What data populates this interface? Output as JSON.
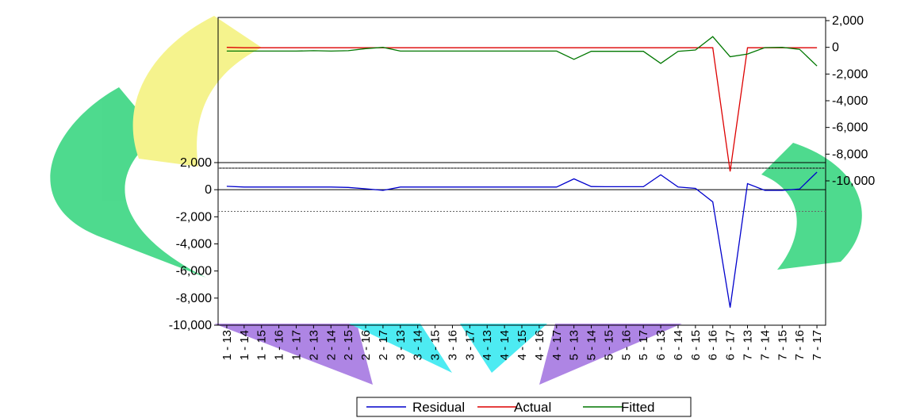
{
  "chart_data": {
    "type": "line",
    "title": "",
    "xlabel": "",
    "categories": [
      "1 - 13",
      "1 - 14",
      "1 - 15",
      "1 - 16",
      "1 - 17",
      "2 - 13",
      "2 - 14",
      "2 - 15",
      "2 - 16",
      "2 - 17",
      "3 - 13",
      "3 - 14",
      "3 - 15",
      "3 - 16",
      "3 - 17",
      "4 - 13",
      "4 - 14",
      "4 - 15",
      "4 - 16",
      "4 - 17",
      "5 - 13",
      "5 - 14",
      "5 - 15",
      "5 - 16",
      "5 - 17",
      "6 - 13",
      "6 - 14",
      "6 - 15",
      "6 - 16",
      "6 - 17",
      "7 - 13",
      "7 - 14",
      "7 - 15",
      "7 - 16",
      "7 - 17"
    ],
    "right_axis": {
      "ylim": [
        -10000,
        2000
      ],
      "ticks": [
        "2,000",
        "0",
        "-2,000",
        "-4,000",
        "-6,000",
        "-8,000",
        "-10,000"
      ],
      "tick_values": [
        2000,
        0,
        -2000,
        -4000,
        -6000,
        -8000,
        -10000
      ]
    },
    "left_axis": {
      "ylim": [
        -10000,
        2000
      ],
      "ticks": [
        "2,000",
        "0",
        "-2,000",
        "-4,000",
        "-6,000",
        "-8,000",
        "-10,000"
      ],
      "tick_values": [
        2000,
        0,
        -2000,
        -4000,
        -6000,
        -8000,
        -10000
      ],
      "reference_lines": [
        1600,
        -1600
      ]
    },
    "series": [
      {
        "name": "Residual",
        "axis": "left",
        "color": "#0000cc",
        "values": [
          250,
          200,
          200,
          200,
          200,
          200,
          200,
          170,
          70,
          -50,
          200,
          200,
          200,
          200,
          200,
          200,
          200,
          200,
          200,
          200,
          800,
          230,
          220,
          220,
          220,
          1100,
          200,
          100,
          -900,
          -8700,
          450,
          -50,
          -50,
          50,
          1300
        ]
      },
      {
        "name": "Actual",
        "axis": "right",
        "color": "#dd0000",
        "values": [
          0,
          -30,
          -30,
          -30,
          -30,
          -30,
          -30,
          -30,
          -30,
          -30,
          -30,
          -30,
          -30,
          -30,
          -30,
          -30,
          -30,
          -30,
          -30,
          -30,
          -30,
          -30,
          -30,
          -30,
          -30,
          -30,
          -30,
          -30,
          -30,
          -9300,
          -30,
          -30,
          -30,
          -30,
          -30
        ]
      },
      {
        "name": "Fitted",
        "axis": "right",
        "color": "#007700",
        "values": [
          -280,
          -280,
          -280,
          -280,
          -280,
          -250,
          -280,
          -250,
          -100,
          0,
          -280,
          -280,
          -280,
          -280,
          -280,
          -280,
          -280,
          -280,
          -280,
          -280,
          -900,
          -300,
          -300,
          -300,
          -300,
          -1200,
          -300,
          -200,
          800,
          -700,
          -500,
          -20,
          0,
          -150,
          -1400
        ]
      }
    ],
    "legend": {
      "placement": "bottom-center",
      "entries": [
        "Residual",
        "Actual",
        "Fitted"
      ]
    },
    "grid": false
  }
}
